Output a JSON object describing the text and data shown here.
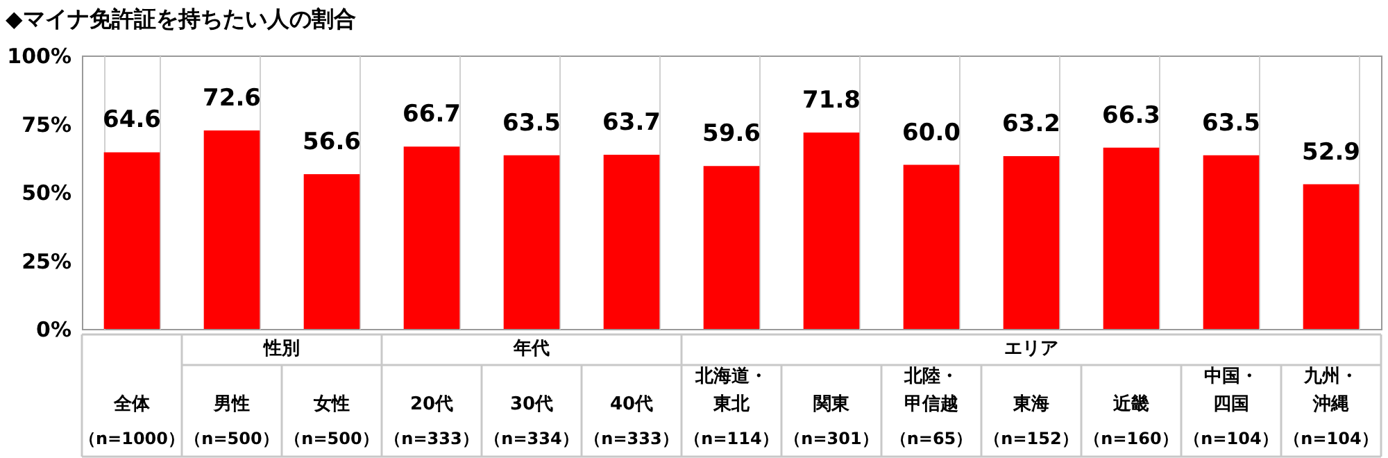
{
  "chart_data": {
    "type": "bar",
    "title": "◆マイナ免許証を持ちたい人の割合",
    "categories": [
      "全体（n=1000）",
      "男性（n=500）",
      "女性（n=500）",
      "20代（n=333）",
      "30代（n=334）",
      "40代（n=333）",
      "北海道・東北（n=114）",
      "関東（n=301）",
      "北陸・甲信越（n=65）",
      "東海（n=152）",
      "近畿（n=160）",
      "中国・四国（n=104）",
      "九州・沖縄（n=104）"
    ],
    "values": [
      64.6,
      72.6,
      56.6,
      66.7,
      63.5,
      63.7,
      59.6,
      71.8,
      60.0,
      63.2,
      66.3,
      63.5,
      52.9
    ],
    "value_labels": [
      "64.6",
      "72.6",
      "56.6",
      "66.7",
      "63.5",
      "63.7",
      "59.6",
      "71.8",
      "60.0",
      "63.2",
      "66.3",
      "63.5",
      "52.9"
    ],
    "color": "#ff0000",
    "ylim": [
      0,
      100
    ],
    "yticks": [
      {
        "value": 0,
        "label": "0%"
      },
      {
        "value": 25,
        "label": "25%"
      },
      {
        "value": 50,
        "label": "50%"
      },
      {
        "value": 75,
        "label": "75%"
      },
      {
        "value": 100,
        "label": "100%"
      }
    ],
    "grid": "x",
    "annotations": [
      "性別",
      "年代",
      "エリア"
    ]
  }
}
